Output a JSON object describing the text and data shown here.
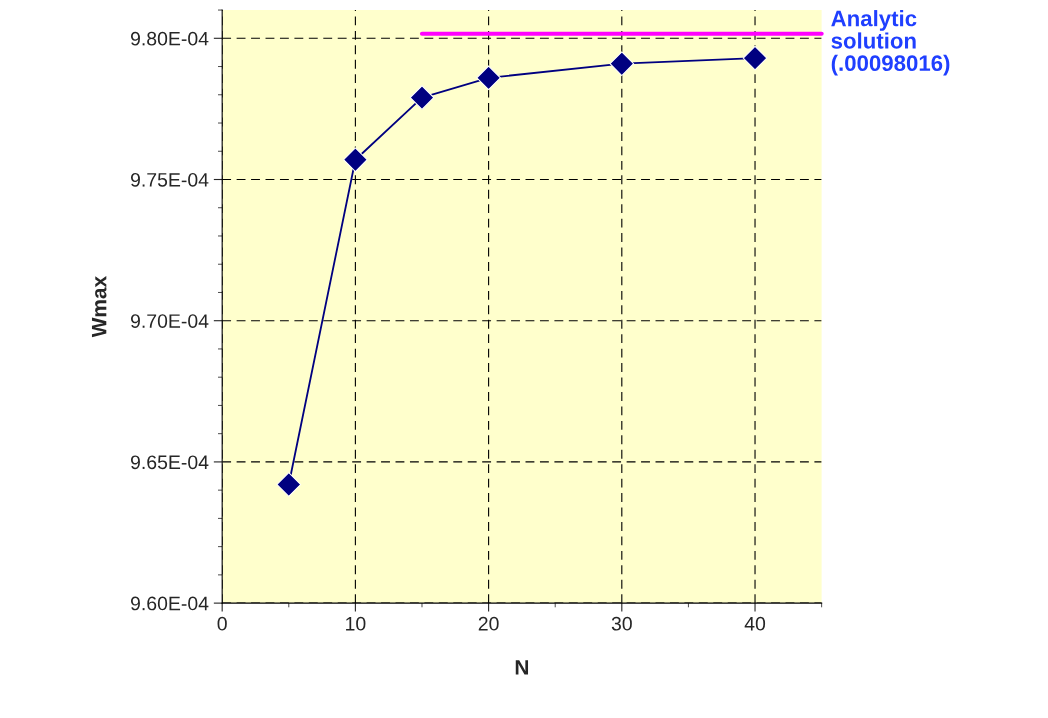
{
  "chart_data": {
    "type": "line",
    "xlabel": "N",
    "ylabel": "Wmax",
    "series": [
      {
        "color": "#000080",
        "x": [
          5,
          10,
          15,
          20,
          30,
          40
        ],
        "values": [
          0.0009642,
          0.0009757,
          0.0009779,
          0.0009786,
          0.0009791,
          0.0009793
        ],
        "marker": "diamond"
      },
      {
        "type": "line",
        "color": "#ff00ff",
        "x": [
          15,
          45
        ],
        "values": [
          0.00098016,
          0.00098016
        ],
        "marker": "none"
      }
    ],
    "xlim": [
      0,
      45
    ],
    "xticks": [
      0,
      10,
      20,
      30,
      40
    ],
    "ylim": [
      0.00096,
      0.000981
    ],
    "yticks": [
      {
        "value": 0.00096,
        "label": "9.60E-04"
      },
      {
        "value": 0.000965,
        "label": "9.65E-04"
      },
      {
        "value": 0.00097,
        "label": "9.70E-04"
      },
      {
        "value": 0.000975,
        "label": "9.75E-04"
      },
      {
        "value": 0.00098,
        "label": "9.80E-04"
      }
    ],
    "grid": true,
    "line_style": "solid",
    "annotations": [
      "Analytic\nsolution\n(.00098016)"
    ]
  }
}
